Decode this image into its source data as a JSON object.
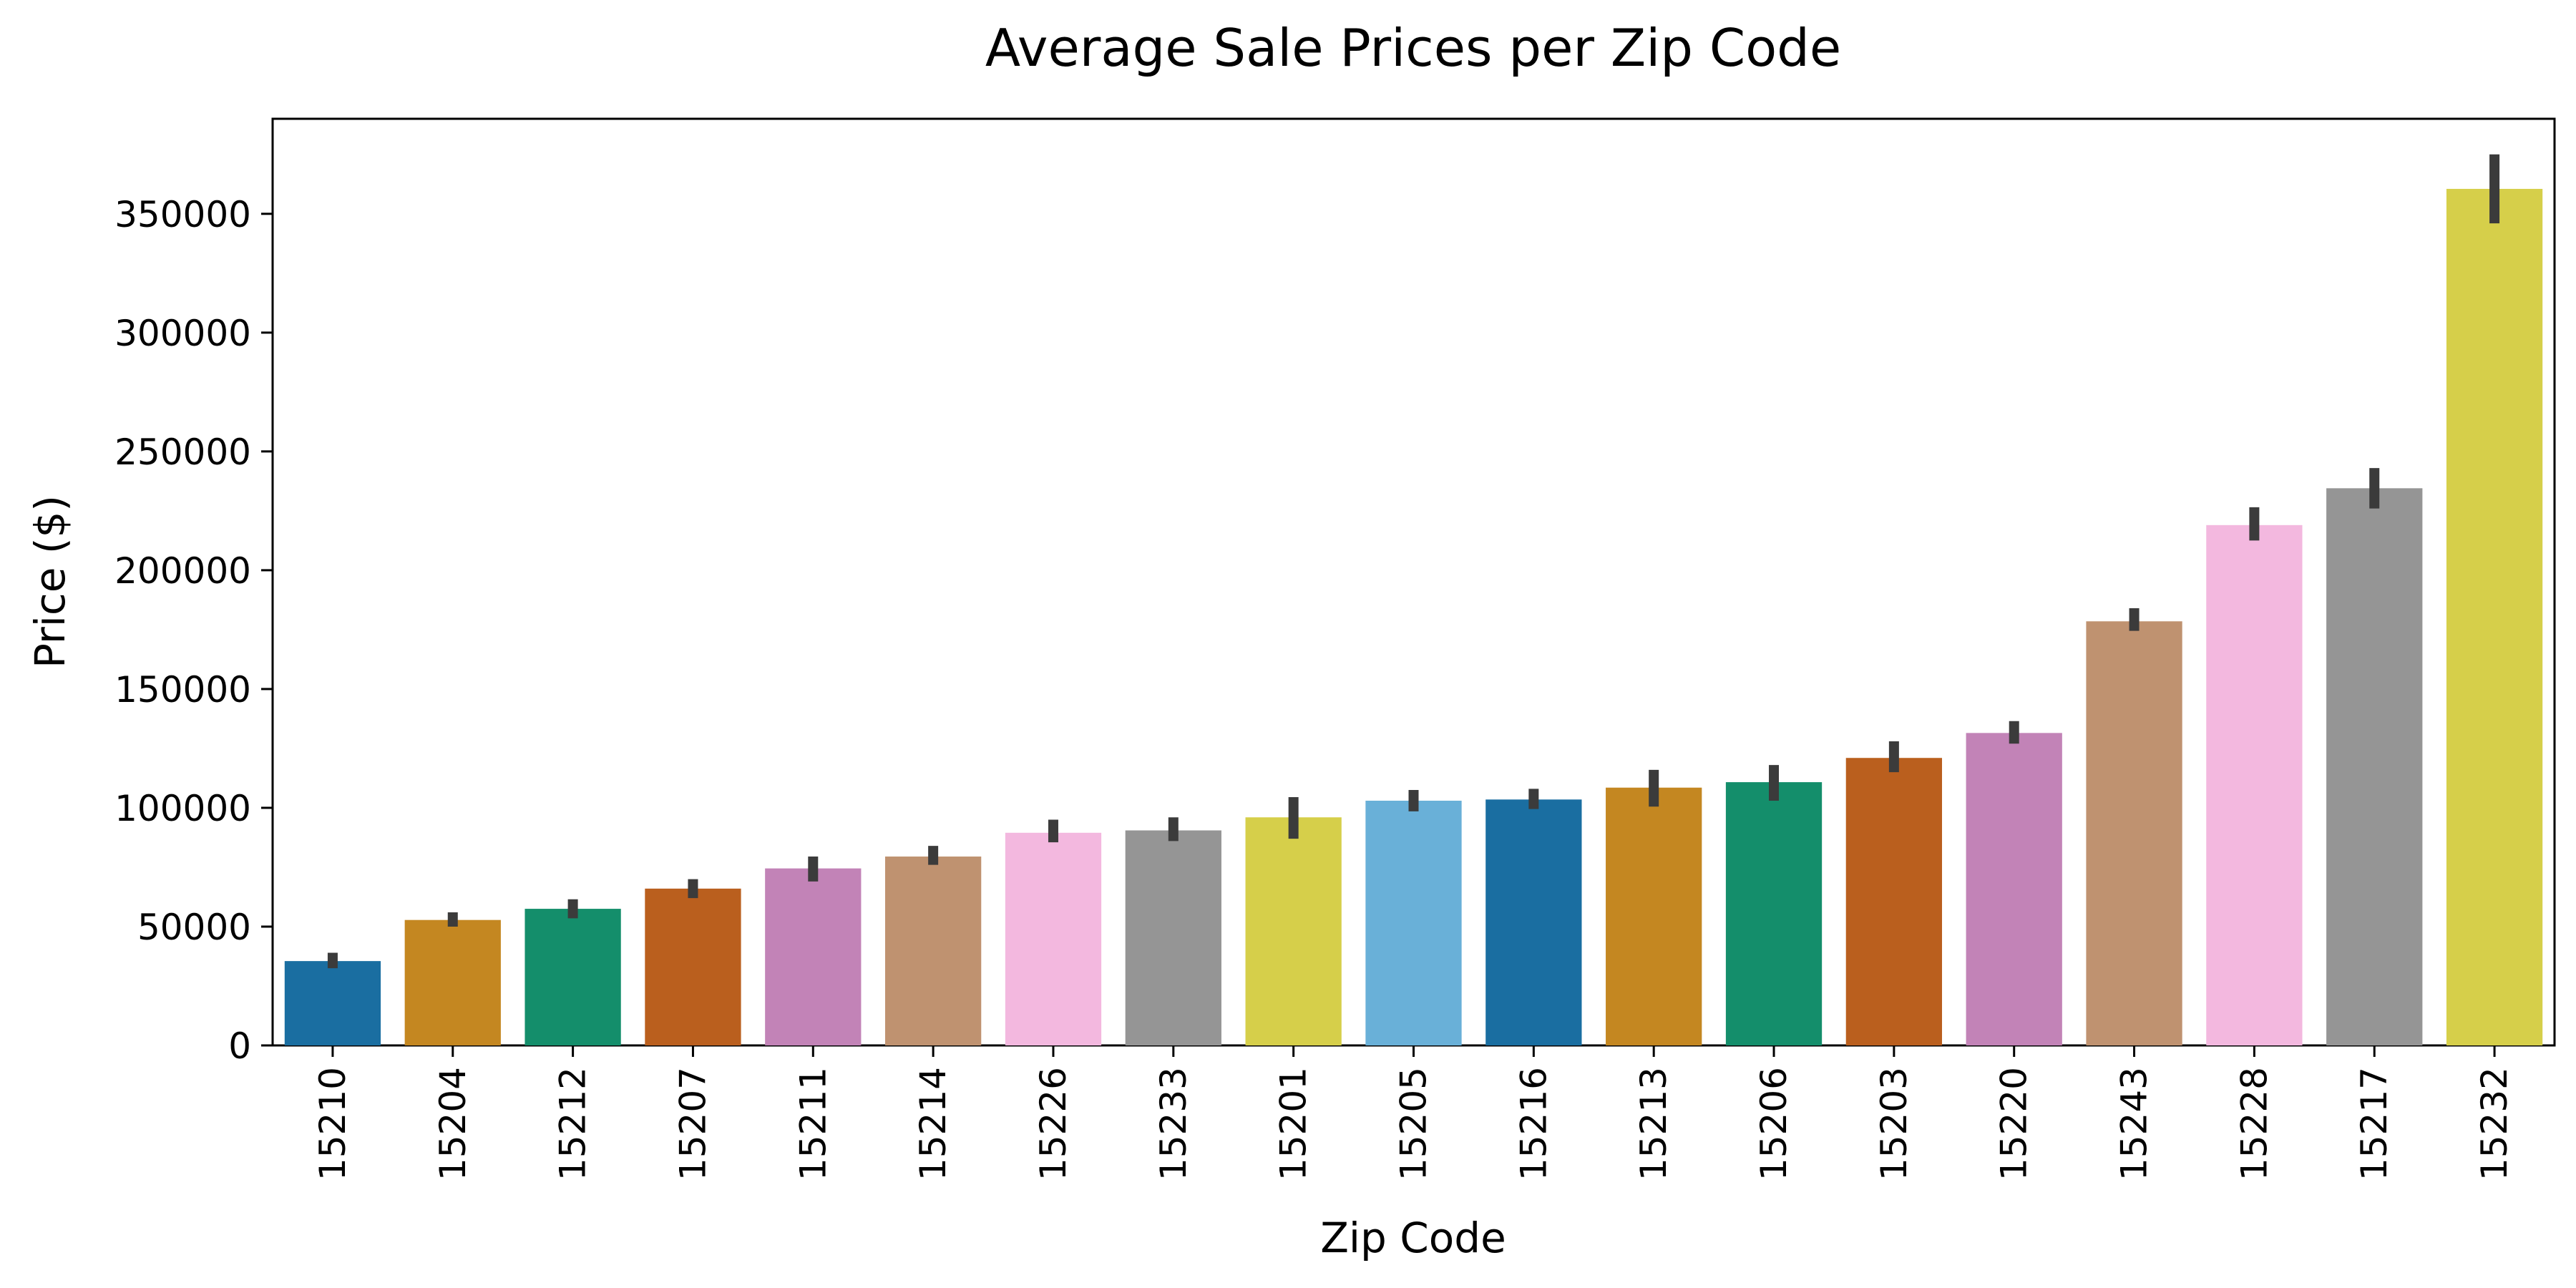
{
  "chart_data": {
    "type": "bar",
    "title": "Average Sale Prices per Zip Code",
    "xlabel": "Zip Code",
    "ylabel": "Price ($)",
    "ylim": [
      0,
      390000
    ],
    "yticks": [
      0,
      50000,
      100000,
      150000,
      200000,
      250000,
      300000,
      350000
    ],
    "ytick_labels": [
      "0",
      "50000",
      "100000",
      "150000",
      "200000",
      "250000",
      "300000",
      "350000"
    ],
    "grid": false,
    "legend": "none",
    "categories": [
      "15210",
      "15204",
      "15212",
      "15207",
      "15211",
      "15214",
      "15226",
      "15233",
      "15201",
      "15205",
      "15216",
      "15213",
      "15206",
      "15203",
      "15220",
      "15243",
      "15228",
      "15217",
      "15232"
    ],
    "values": [
      35500,
      52800,
      57500,
      66000,
      74500,
      79500,
      89500,
      90500,
      96000,
      103000,
      103500,
      108500,
      110800,
      121000,
      131500,
      178500,
      219000,
      234500,
      360500
    ],
    "error_low": [
      32500,
      50000,
      53500,
      62000,
      69000,
      76000,
      85500,
      86000,
      87000,
      98500,
      99500,
      100500,
      103000,
      115000,
      127000,
      174500,
      212500,
      226000,
      346000
    ],
    "error_high": [
      39000,
      56000,
      61500,
      70000,
      79500,
      84000,
      95000,
      96000,
      104500,
      107500,
      108000,
      116000,
      118000,
      128000,
      136500,
      184000,
      226500,
      243000,
      375000
    ],
    "colors": [
      "#1a6ea1",
      "#c48721",
      "#148e6b",
      "#ba5f1e",
      "#c283b7",
      "#bf9270",
      "#f3b8df",
      "#959595",
      "#d6cf4a",
      "#69b0d8",
      "#1a6ea1",
      "#c48721",
      "#148e6b",
      "#ba5f1e",
      "#c283b7",
      "#bf9270",
      "#f3b8df",
      "#959595",
      "#d6cf4a"
    ],
    "error_color": "#3b3b3b"
  }
}
